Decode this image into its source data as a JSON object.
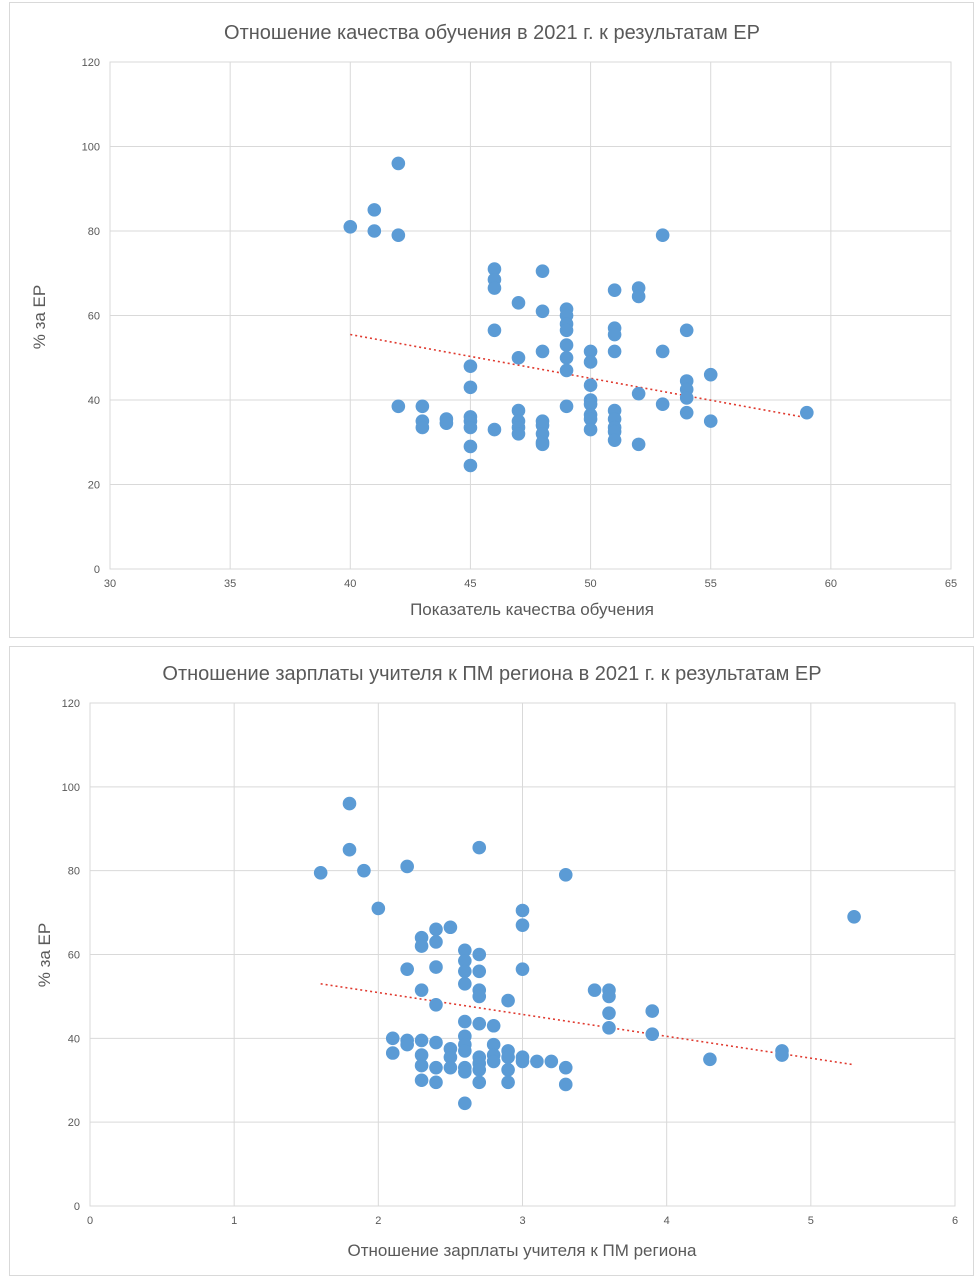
{
  "chart_data": [
    {
      "type": "scatter",
      "title": "Отношение качества обучения в 2021 г. к результатам ЕР",
      "xlabel": "Показатель качества обучения",
      "ylabel": "% за ЕР",
      "xlim": [
        30,
        65
      ],
      "ylim": [
        0,
        120
      ],
      "xticks": [
        30,
        35,
        40,
        45,
        50,
        55,
        60,
        65
      ],
      "yticks": [
        0,
        20,
        40,
        60,
        80,
        100,
        120
      ],
      "grid": true,
      "point_color": "#5b9bd5",
      "trend_color": "#e03a2f",
      "trendline": {
        "type": "linear",
        "x": [
          40,
          59
        ],
        "y": [
          55.5,
          35.8
        ]
      },
      "points": [
        [
          40,
          81
        ],
        [
          41,
          85
        ],
        [
          41,
          80
        ],
        [
          42,
          96
        ],
        [
          42,
          79
        ],
        [
          42,
          38.5
        ],
        [
          43,
          38.5
        ],
        [
          43,
          35
        ],
        [
          43,
          33.5
        ],
        [
          44,
          35.5
        ],
        [
          44,
          34.5
        ],
        [
          45,
          48
        ],
        [
          45,
          43
        ],
        [
          45,
          36
        ],
        [
          45,
          35
        ],
        [
          45,
          33.5
        ],
        [
          45,
          29
        ],
        [
          45,
          24.5
        ],
        [
          46,
          71
        ],
        [
          46,
          68.5
        ],
        [
          46,
          66.5
        ],
        [
          46,
          56.5
        ],
        [
          46,
          33
        ],
        [
          47,
          63
        ],
        [
          47,
          50
        ],
        [
          47,
          37.5
        ],
        [
          47,
          35
        ],
        [
          47,
          33.5
        ],
        [
          47,
          32
        ],
        [
          48,
          70.5
        ],
        [
          48,
          61
        ],
        [
          48,
          51.5
        ],
        [
          48,
          35
        ],
        [
          48,
          34
        ],
        [
          48,
          32
        ],
        [
          48,
          30
        ],
        [
          48,
          29.5
        ],
        [
          49,
          61.5
        ],
        [
          49,
          60
        ],
        [
          49,
          58
        ],
        [
          49,
          56.5
        ],
        [
          49,
          53
        ],
        [
          49,
          50
        ],
        [
          49,
          47
        ],
        [
          49,
          38.5
        ],
        [
          50,
          51.5
        ],
        [
          50,
          49
        ],
        [
          50,
          43.5
        ],
        [
          50,
          40
        ],
        [
          50,
          39
        ],
        [
          50,
          36.5
        ],
        [
          50,
          35.5
        ],
        [
          50,
          33
        ],
        [
          51,
          66
        ],
        [
          51,
          57
        ],
        [
          51,
          55.5
        ],
        [
          51,
          51.5
        ],
        [
          51,
          37.5
        ],
        [
          51,
          35.5
        ],
        [
          51,
          33.5
        ],
        [
          51,
          32.5
        ],
        [
          51,
          30.5
        ],
        [
          52,
          66.5
        ],
        [
          52,
          64.5
        ],
        [
          52,
          41.5
        ],
        [
          52,
          29.5
        ],
        [
          53,
          79
        ],
        [
          53,
          51.5
        ],
        [
          53,
          39
        ],
        [
          54,
          56.5
        ],
        [
          54,
          44.5
        ],
        [
          54,
          42.5
        ],
        [
          54,
          40.5
        ],
        [
          54,
          37
        ],
        [
          55,
          46
        ],
        [
          55,
          35
        ],
        [
          59,
          37
        ]
      ]
    },
    {
      "type": "scatter",
      "title": "Отношение зарплаты учителя к ПМ региона в 2021 г. к результатам ЕР",
      "xlabel": "Отношение зарплаты учителя к ПМ региона",
      "ylabel": "% за ЕР",
      "xlim": [
        0,
        6
      ],
      "ylim": [
        0,
        120
      ],
      "xticks": [
        0,
        1,
        2,
        3,
        4,
        5,
        6
      ],
      "yticks": [
        0,
        20,
        40,
        60,
        80,
        100,
        120
      ],
      "grid": true,
      "point_color": "#5b9bd5",
      "trend_color": "#e03a2f",
      "trendline": {
        "type": "linear",
        "x": [
          1.6,
          5.3
        ],
        "y": [
          53,
          33.7
        ]
      },
      "points": [
        [
          1.6,
          79.5
        ],
        [
          1.8,
          96
        ],
        [
          1.8,
          85
        ],
        [
          1.9,
          80
        ],
        [
          2.0,
          71
        ],
        [
          2.1,
          40
        ],
        [
          2.1,
          36.5
        ],
        [
          2.2,
          81
        ],
        [
          2.2,
          56.5
        ],
        [
          2.2,
          39.5
        ],
        [
          2.2,
          38.5
        ],
        [
          2.3,
          64
        ],
        [
          2.3,
          62
        ],
        [
          2.3,
          51.5
        ],
        [
          2.3,
          39.5
        ],
        [
          2.3,
          36
        ],
        [
          2.3,
          33.5
        ],
        [
          2.3,
          30
        ],
        [
          2.4,
          66
        ],
        [
          2.4,
          63
        ],
        [
          2.4,
          57
        ],
        [
          2.4,
          48
        ],
        [
          2.4,
          39
        ],
        [
          2.4,
          33
        ],
        [
          2.4,
          29.5
        ],
        [
          2.5,
          66.5
        ],
        [
          2.5,
          37.5
        ],
        [
          2.5,
          35.5
        ],
        [
          2.5,
          33
        ],
        [
          2.6,
          61
        ],
        [
          2.6,
          58.5
        ],
        [
          2.6,
          56
        ],
        [
          2.6,
          53
        ],
        [
          2.6,
          44
        ],
        [
          2.6,
          40.5
        ],
        [
          2.6,
          38.5
        ],
        [
          2.6,
          37
        ],
        [
          2.6,
          33
        ],
        [
          2.6,
          32
        ],
        [
          2.6,
          24.5
        ],
        [
          2.7,
          85.5
        ],
        [
          2.7,
          60
        ],
        [
          2.7,
          56
        ],
        [
          2.7,
          51.5
        ],
        [
          2.7,
          50
        ],
        [
          2.7,
          43.5
        ],
        [
          2.7,
          35.5
        ],
        [
          2.7,
          34
        ],
        [
          2.7,
          32.5
        ],
        [
          2.7,
          29.5
        ],
        [
          2.8,
          43
        ],
        [
          2.8,
          38.5
        ],
        [
          2.8,
          36
        ],
        [
          2.8,
          34.5
        ],
        [
          2.9,
          49
        ],
        [
          2.9,
          37
        ],
        [
          2.9,
          35.5
        ],
        [
          2.9,
          32.5
        ],
        [
          2.9,
          29.5
        ],
        [
          3.0,
          70.5
        ],
        [
          3.0,
          67
        ],
        [
          3.0,
          56.5
        ],
        [
          3.0,
          35.5
        ],
        [
          3.0,
          34.5
        ],
        [
          3.1,
          34.5
        ],
        [
          3.2,
          34.5
        ],
        [
          3.3,
          79
        ],
        [
          3.3,
          33
        ],
        [
          3.3,
          29
        ],
        [
          3.5,
          51.5
        ],
        [
          3.6,
          51.5
        ],
        [
          3.6,
          50
        ],
        [
          3.6,
          46
        ],
        [
          3.6,
          42.5
        ],
        [
          3.9,
          46.5
        ],
        [
          3.9,
          41
        ],
        [
          4.3,
          35
        ],
        [
          4.8,
          37
        ],
        [
          4.8,
          36
        ],
        [
          5.3,
          69
        ]
      ]
    }
  ]
}
